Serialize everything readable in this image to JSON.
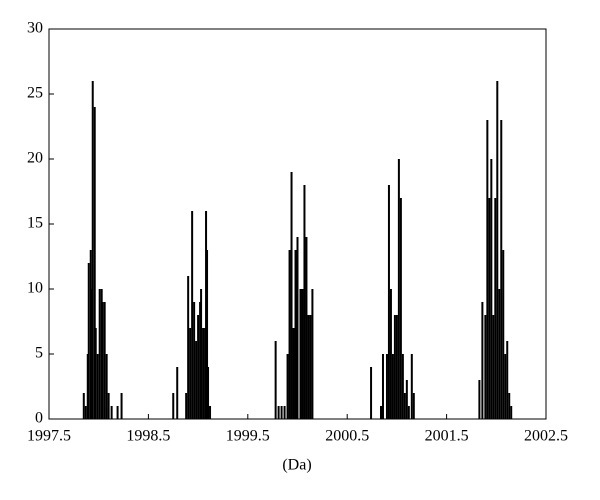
{
  "chart_data": {
    "type": "bar",
    "xlabel": "(Da)",
    "color": "#000000",
    "x": [
      1997.85,
      1997.87,
      1997.89,
      1997.9,
      1997.92,
      1997.93,
      1997.94,
      1997.96,
      1997.97,
      1997.99,
      1998.01,
      1998.03,
      1998.04,
      1998.06,
      1998.08,
      1998.1,
      1998.13,
      1998.19,
      1998.23,
      1998.75,
      1998.79,
      1998.88,
      1998.9,
      1998.92,
      1998.94,
      1998.96,
      1998.98,
      1999.0,
      1999.02,
      1999.03,
      1999.05,
      1999.07,
      1999.08,
      1999.09,
      1999.1,
      1999.12,
      1999.78,
      1999.81,
      1999.84,
      1999.87,
      1999.9,
      1999.92,
      1999.94,
      1999.96,
      1999.98,
      2000.0,
      2000.03,
      2000.05,
      2000.07,
      2000.09,
      2000.11,
      2000.13,
      2000.15,
      2000.74,
      2000.84,
      2000.86,
      2000.9,
      2000.92,
      2000.94,
      2000.96,
      2000.98,
      2001.0,
      2001.02,
      2001.04,
      2001.06,
      2001.08,
      2001.1,
      2001.12,
      2001.15,
      2001.17,
      2001.83,
      2001.86,
      2001.89,
      2001.91,
      2001.93,
      2001.95,
      2001.97,
      2001.99,
      2002.01,
      2002.03,
      2002.05,
      2002.07,
      2002.09,
      2002.11,
      2002.13,
      2002.15
    ],
    "values": [
      2,
      1,
      5,
      12,
      13,
      10,
      26,
      24,
      7,
      5,
      10,
      10,
      9,
      9,
      5,
      2,
      1,
      1,
      2,
      2,
      4,
      2,
      11,
      7,
      16,
      9,
      6,
      8,
      9,
      10,
      7,
      7,
      16,
      13,
      4,
      1,
      6,
      1,
      1,
      1,
      5,
      13,
      19,
      7,
      13,
      14,
      10,
      10,
      18,
      14,
      8,
      8,
      10,
      4,
      1,
      5,
      5,
      18,
      10,
      5,
      8,
      8,
      20,
      17,
      5,
      2,
      3,
      1,
      5,
      2,
      3,
      9,
      8,
      23,
      17,
      20,
      8,
      17,
      26,
      10,
      23,
      13,
      5,
      6,
      2,
      1
    ],
    "xlim": [
      1997.5,
      2002.5
    ],
    "xticks": [
      1997.5,
      1998.5,
      1999.5,
      2000.5,
      2001.5,
      2002.5
    ],
    "ylim": [
      0,
      30
    ],
    "yticks": [
      0,
      5,
      10,
      15,
      20,
      25,
      30
    ]
  }
}
